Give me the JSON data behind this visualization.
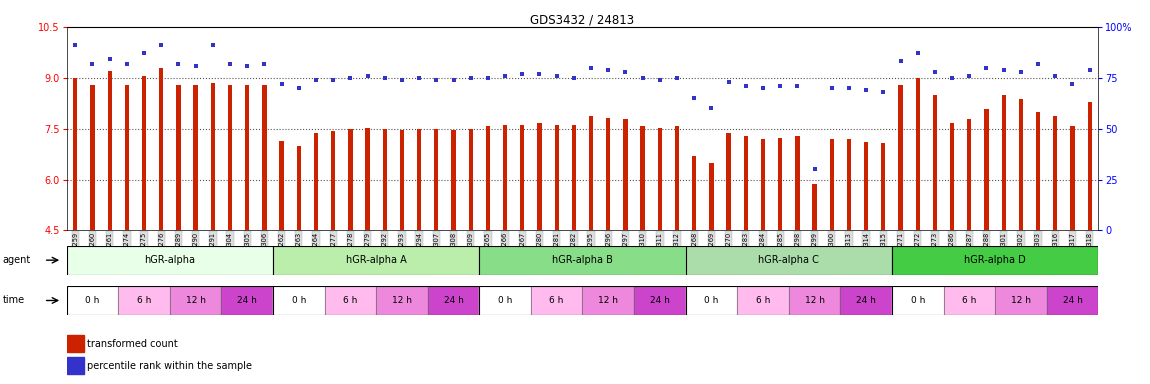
{
  "title": "GDS3432 / 24813",
  "samples": [
    "GSM154259",
    "GSM154260",
    "GSM154261",
    "GSM154274",
    "GSM154275",
    "GSM154276",
    "GSM154289",
    "GSM154290",
    "GSM154291",
    "GSM154304",
    "GSM154305",
    "GSM154306",
    "GSM154262",
    "GSM154263",
    "GSM154264",
    "GSM154277",
    "GSM154278",
    "GSM154279",
    "GSM154292",
    "GSM154293",
    "GSM154294",
    "GSM154307",
    "GSM154308",
    "GSM154309",
    "GSM154265",
    "GSM154266",
    "GSM154267",
    "GSM154280",
    "GSM154281",
    "GSM154282",
    "GSM154295",
    "GSM154296",
    "GSM154297",
    "GSM154310",
    "GSM154311",
    "GSM154312",
    "GSM154268",
    "GSM154269",
    "GSM154270",
    "GSM154283",
    "GSM154284",
    "GSM154285",
    "GSM154298",
    "GSM154299",
    "GSM154300",
    "GSM154313",
    "GSM154314",
    "GSM154315",
    "GSM154271",
    "GSM154272",
    "GSM154273",
    "GSM154286",
    "GSM154287",
    "GSM154288",
    "GSM154301",
    "GSM154302",
    "GSM154303",
    "GSM154316",
    "GSM154317",
    "GSM154318"
  ],
  "bar_values": [
    9.0,
    8.8,
    9.2,
    8.8,
    9.05,
    9.3,
    8.8,
    8.78,
    8.85,
    8.8,
    8.78,
    8.8,
    7.15,
    6.98,
    7.38,
    7.42,
    7.48,
    7.52,
    7.48,
    7.45,
    7.5,
    7.48,
    7.45,
    7.48,
    7.58,
    7.6,
    7.62,
    7.68,
    7.62,
    7.6,
    7.88,
    7.82,
    7.78,
    7.58,
    7.52,
    7.58,
    6.68,
    6.48,
    7.38,
    7.28,
    7.18,
    7.22,
    7.28,
    5.88,
    7.18,
    7.18,
    7.12,
    7.08,
    8.78,
    8.98,
    8.48,
    7.68,
    7.78,
    8.08,
    8.48,
    8.38,
    7.98,
    7.88,
    7.58,
    8.28
  ],
  "dot_values": [
    91,
    82,
    84,
    82,
    87,
    91,
    82,
    81,
    91,
    82,
    81,
    82,
    72,
    70,
    74,
    74,
    75,
    76,
    75,
    74,
    75,
    74,
    74,
    75,
    75,
    76,
    77,
    77,
    76,
    75,
    80,
    79,
    78,
    75,
    74,
    75,
    65,
    60,
    73,
    71,
    70,
    71,
    71,
    30,
    70,
    70,
    69,
    68,
    83,
    87,
    78,
    75,
    76,
    80,
    79,
    78,
    82,
    76,
    72,
    79
  ],
  "ylim_left": [
    4.5,
    10.5
  ],
  "ylim_right": [
    0,
    100
  ],
  "yticks_left": [
    4.5,
    6.0,
    7.5,
    9.0,
    10.5
  ],
  "yticks_right": [
    0,
    25,
    50,
    75,
    100
  ],
  "hlines": [
    6.0,
    7.5,
    9.0
  ],
  "bar_color": "#cc2200",
  "dot_color": "#3333cc",
  "agent_groups": [
    {
      "label": "hGR-alpha",
      "start": 0,
      "end": 12,
      "color": "#e8ffe8"
    },
    {
      "label": "hGR-alpha A",
      "start": 12,
      "end": 24,
      "color": "#bbeeaa"
    },
    {
      "label": "hGR-alpha B",
      "start": 24,
      "end": 36,
      "color": "#88dd88"
    },
    {
      "label": "hGR-alpha C",
      "start": 36,
      "end": 48,
      "color": "#aaddaa"
    },
    {
      "label": "hGR-alpha D",
      "start": 48,
      "end": 60,
      "color": "#44cc44"
    }
  ],
  "time_colors": [
    "#ffffff",
    "#ffbbee",
    "#ee88dd",
    "#cc44cc"
  ],
  "time_labels": [
    "0 h",
    "6 h",
    "12 h",
    "24 h"
  ],
  "legend_bar_label": "transformed count",
  "legend_dot_label": "percentile rank within the sample"
}
